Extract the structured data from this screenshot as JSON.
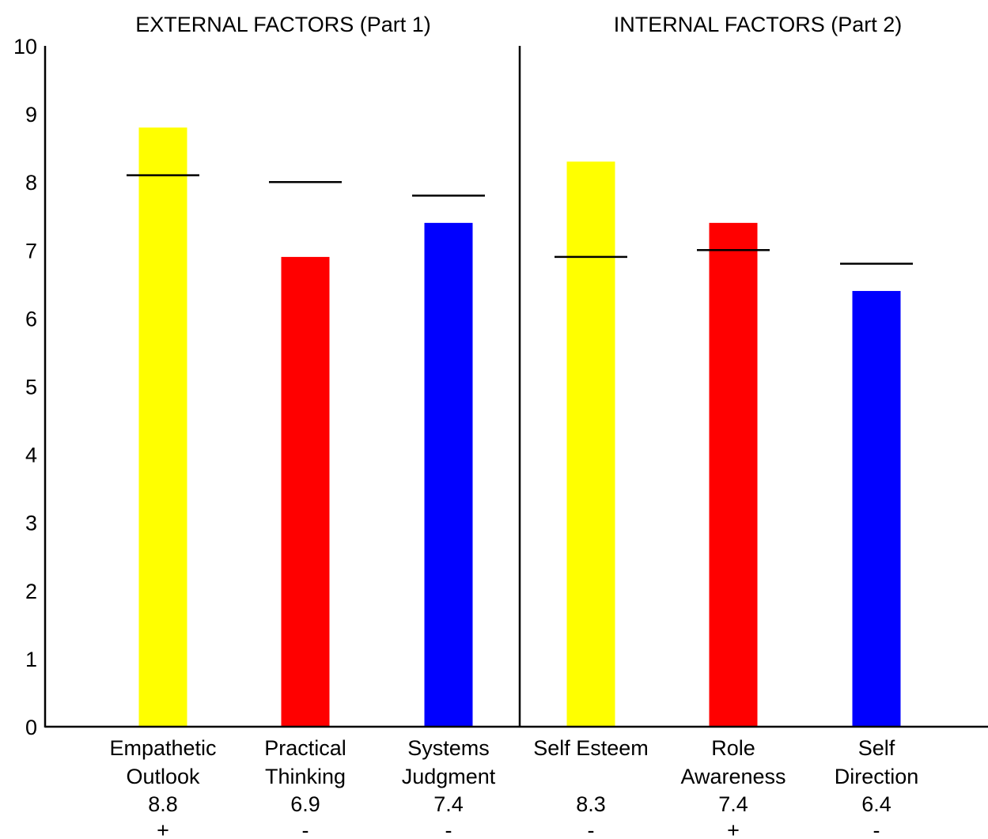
{
  "chart_data": {
    "type": "bar",
    "sections": [
      {
        "label": "EXTERNAL FACTORS (Part 1)",
        "count": 3
      },
      {
        "label": "INTERNAL FACTORS (Part 2)",
        "count": 3
      }
    ],
    "categories": [
      [
        "Empathetic",
        "Outlook"
      ],
      [
        "Practical",
        "Thinking"
      ],
      [
        "Systems",
        "Judgment"
      ],
      [
        "Self Esteem"
      ],
      [
        "Role",
        "Awareness"
      ],
      [
        "Self",
        "Direction"
      ]
    ],
    "values": [
      8.8,
      6.9,
      7.4,
      8.3,
      7.4,
      6.4
    ],
    "value_labels": [
      "8.8",
      "6.9",
      "7.4",
      "8.3",
      "7.4",
      "6.4"
    ],
    "markers": [
      8.1,
      8.0,
      7.8,
      6.9,
      7.0,
      6.8
    ],
    "signs": [
      "+",
      "-",
      "-",
      "-",
      "+",
      "-"
    ],
    "colors": [
      "#ffff00",
      "#ff0000",
      "#0000ff",
      "#ffff00",
      "#ff0000",
      "#0000ff"
    ],
    "yticks": [
      "0",
      "1",
      "2",
      "3",
      "4",
      "5",
      "6",
      "7",
      "8",
      "9",
      "10"
    ],
    "ylim": [
      0,
      10
    ],
    "grid": false
  }
}
